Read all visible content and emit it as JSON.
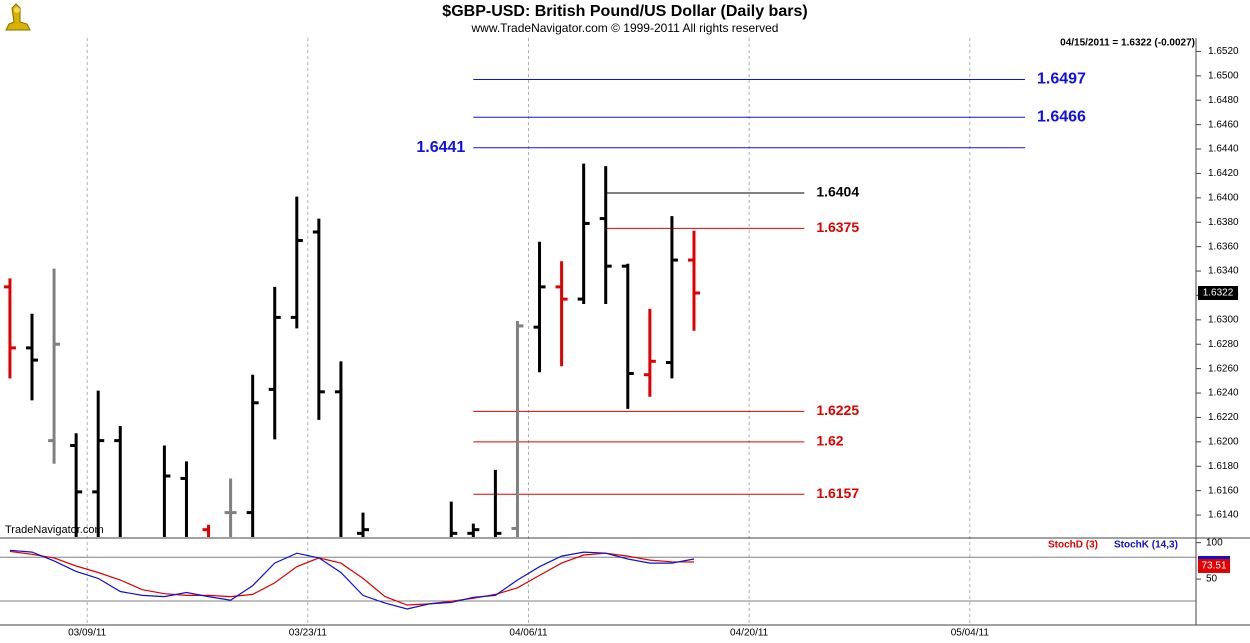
{
  "chart_data": {
    "type": "ohlc",
    "title": "$GBP-USD:  British Pound/US Dollar  (Daily bars)",
    "subtitle": "www.TradeNavigator.com © 1999-2011 All rights reserved",
    "info": "04/15/2011 = 1.6322 (-0.0027)",
    "watermark": "TradeNavigator.com",
    "categories": [
      null,
      null,
      null,
      null,
      null,
      null,
      null,
      null,
      null,
      null,
      null,
      null,
      null,
      null,
      null,
      null,
      null,
      null,
      null,
      null,
      null,
      null,
      null,
      null,
      null,
      null,
      null,
      null,
      null,
      null,
      null,
      null
    ],
    "xlim": [
      -0.45,
      53.75
    ],
    "xticks": [
      {
        "value": 4,
        "label": "03/09/11"
      },
      {
        "value": 14,
        "label": "03/23/11"
      },
      {
        "value": 24,
        "label": "04/06/11"
      },
      {
        "value": 34,
        "label": "04/20/11"
      },
      {
        "value": 44,
        "label": "05/04/11"
      }
    ],
    "ylim": [
      1.6122,
      1.6531
    ],
    "yticks": [
      {
        "value": 1.614,
        "label": "1.6140"
      },
      {
        "value": 1.616,
        "label": "1.6160"
      },
      {
        "value": 1.618,
        "label": "1.6180"
      },
      {
        "value": 1.62,
        "label": "1.6200"
      },
      {
        "value": 1.622,
        "label": "1.6220"
      },
      {
        "value": 1.624,
        "label": "1.6240"
      },
      {
        "value": 1.626,
        "label": "1.6260"
      },
      {
        "value": 1.628,
        "label": "1.6280"
      },
      {
        "value": 1.63,
        "label": "1.6300"
      },
      {
        "value": 1.632,
        "label": "1.6320"
      },
      {
        "value": 1.634,
        "label": "1.6340"
      },
      {
        "value": 1.636,
        "label": "1.6360"
      },
      {
        "value": 1.638,
        "label": "1.6380"
      },
      {
        "value": 1.64,
        "label": "1.6400"
      },
      {
        "value": 1.642,
        "label": "1.6420"
      },
      {
        "value": 1.644,
        "label": "1.6440"
      },
      {
        "value": 1.646,
        "label": "1.6460"
      },
      {
        "value": 1.648,
        "label": "1.6480"
      },
      {
        "value": 1.65,
        "label": "1.6500"
      },
      {
        "value": 1.652,
        "label": "1.6520"
      }
    ],
    "ohlc": {
      "open": [
        1.6327,
        1.6277,
        1.6201,
        1.6197,
        1.6159,
        1.6201,
        null,
        1.6115,
        1.617,
        1.6128,
        1.6142,
        1.6142,
        1.6243,
        1.6302,
        1.6372,
        1.6241,
        1.6125,
        null,
        null,
        null,
        1.612,
        1.6125,
        1.612,
        1.6129,
        1.6294,
        1.6327,
        1.6317,
        1.6383,
        1.6344,
        1.6255,
        1.6265,
        1.6349
      ],
      "high": [
        1.6334,
        1.6305,
        1.6342,
        1.6207,
        1.6242,
        1.6213,
        null,
        1.6197,
        1.6184,
        1.6132,
        1.617,
        1.6255,
        1.6327,
        1.6401,
        1.6383,
        1.6266,
        1.6142,
        null,
        null,
        null,
        1.6151,
        1.6133,
        1.6177,
        1.6299,
        1.6364,
        1.6348,
        1.6428,
        1.6426,
        1.6346,
        1.6309,
        1.6385,
        1.6373
      ],
      "low": [
        1.6252,
        1.6234,
        1.6182,
        1.611,
        1.6105,
        1.6105,
        null,
        1.61,
        1.6095,
        1.6105,
        1.611,
        1.611,
        1.6202,
        1.6293,
        1.6218,
        1.611,
        1.6105,
        null,
        null,
        null,
        1.61,
        1.6105,
        1.6105,
        1.6115,
        1.6257,
        1.6262,
        1.6313,
        1.6313,
        1.6227,
        1.6237,
        1.6252,
        1.6291
      ],
      "close": [
        1.6277,
        1.6267,
        1.628,
        1.6159,
        1.6201,
        1.612,
        null,
        1.6172,
        1.611,
        1.6115,
        1.6142,
        1.6232,
        1.6302,
        1.6365,
        1.6241,
        1.6115,
        1.6128,
        null,
        null,
        null,
        1.6125,
        1.6128,
        1.6125,
        1.6295,
        1.6327,
        1.6317,
        1.6379,
        1.6344,
        1.6256,
        1.6266,
        1.6349,
        1.6322
      ],
      "colors": [
        "#e00000",
        "#000000",
        "#808080",
        "#000000",
        "#000000",
        "#000000",
        null,
        "#000000",
        "#000000",
        "#e00000",
        "#808080",
        "#000000",
        "#000000",
        "#000000",
        "#000000",
        "#000000",
        "#000000",
        null,
        null,
        null,
        "#000000",
        "#000000",
        "#000000",
        "#808080",
        "#000000",
        "#e00000",
        "#000000",
        "#000000",
        "#000000",
        "#e00000",
        "#000000",
        "#e00000"
      ]
    },
    "levels": [
      {
        "value": 1.6497,
        "color": "#1010e8"
      },
      {
        "value": 1.6466,
        "color": "#1010e8"
      },
      {
        "value": 1.6441,
        "color": "#1010e8"
      },
      {
        "value": 1.6404,
        "color": "#000000"
      },
      {
        "value": 1.6375,
        "color": "#e00000"
      },
      {
        "value": 1.6225,
        "color": "#e00000"
      },
      {
        "value": 1.62,
        "color": "#e00000"
      },
      {
        "value": 1.6157,
        "color": "#e00000"
      }
    ],
    "stochastic": {
      "ylim": [
        -13,
        105
      ],
      "yticks": [
        50,
        100
      ],
      "levels": [
        20,
        80
      ],
      "series": [
        {
          "name": "StochD (3)",
          "color": "#e00000",
          "values": [
            88,
            84,
            79,
            68,
            59,
            48.7,
            35.5,
            30,
            27.6,
            27.6,
            26,
            29,
            44.7,
            67,
            79,
            72,
            51,
            26,
            14.5,
            16,
            19.7,
            23.7,
            29,
            38,
            55,
            72,
            83,
            85.5,
            81.6,
            76,
            73.7,
            73.51
          ]
        },
        {
          "name": "StochK (14,3)",
          "color": "#1010d0",
          "values": [
            89.5,
            87,
            75,
            60.5,
            51,
            33,
            27.6,
            26,
            31.6,
            26,
            21,
            41,
            72,
            85.5,
            79,
            59,
            27.6,
            17,
            9,
            16,
            18,
            25,
            27.6,
            48.7,
            67,
            81.6,
            87,
            85.5,
            77.6,
            72,
            72,
            77.6
          ]
        }
      ]
    }
  }
}
